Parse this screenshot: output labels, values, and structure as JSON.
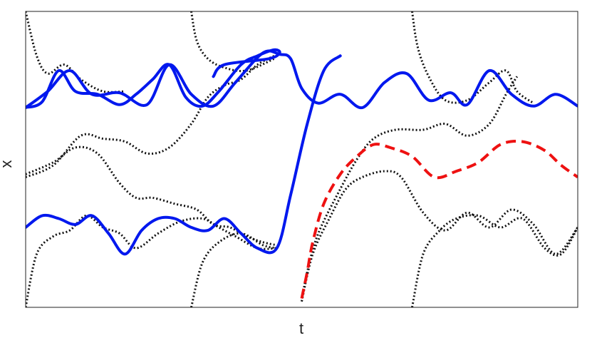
{
  "chart_data": {
    "type": "line",
    "title": "",
    "xlabel": "t",
    "ylabel": "x",
    "xlim": [
      0,
      1
    ],
    "ylim": [
      0,
      1
    ],
    "xticks": [],
    "yticks": [],
    "grid": false,
    "legend": "none",
    "series": [
      {
        "style": "solid",
        "color": "#0018ee",
        "points": [
          [
            0.0,
            0.675
          ],
          [
            0.03,
            0.695
          ],
          [
            0.06,
            0.8
          ],
          [
            0.09,
            0.73
          ],
          [
            0.13,
            0.72
          ],
          [
            0.17,
            0.685
          ],
          [
            0.2,
            0.72
          ],
          [
            0.23,
            0.77
          ],
          [
            0.26,
            0.82
          ],
          [
            0.29,
            0.71
          ],
          [
            0.32,
            0.68
          ],
          [
            0.35,
            0.73
          ],
          [
            0.39,
            0.82
          ],
          [
            0.42,
            0.85
          ],
          [
            0.45,
            0.87
          ],
          [
            0.46,
            0.86
          ],
          [
            0.44,
            0.84
          ],
          [
            0.36,
            0.82
          ],
          [
            0.34,
            0.78
          ]
        ]
      },
      {
        "style": "solid",
        "color": "#0018ee",
        "points": [
          [
            0.0,
            0.675
          ],
          [
            0.04,
            0.73
          ],
          [
            0.08,
            0.8
          ],
          [
            0.12,
            0.72
          ],
          [
            0.17,
            0.725
          ],
          [
            0.22,
            0.685
          ],
          [
            0.26,
            0.82
          ],
          [
            0.3,
            0.72
          ],
          [
            0.34,
            0.68
          ],
          [
            0.38,
            0.76
          ],
          [
            0.43,
            0.86
          ],
          [
            0.46,
            0.855
          ],
          [
            0.48,
            0.84
          ],
          [
            0.5,
            0.74
          ],
          [
            0.53,
            0.69
          ],
          [
            0.57,
            0.72
          ],
          [
            0.61,
            0.675
          ],
          [
            0.65,
            0.76
          ],
          [
            0.69,
            0.79
          ],
          [
            0.73,
            0.7
          ],
          [
            0.77,
            0.725
          ],
          [
            0.8,
            0.685
          ],
          [
            0.84,
            0.8
          ],
          [
            0.88,
            0.72
          ],
          [
            0.92,
            0.68
          ],
          [
            0.96,
            0.72
          ],
          [
            1.0,
            0.68
          ]
        ]
      },
      {
        "style": "solid",
        "color": "#0018ee",
        "points": [
          [
            0.0,
            0.27
          ],
          [
            0.03,
            0.31
          ],
          [
            0.06,
            0.3
          ],
          [
            0.09,
            0.28
          ],
          [
            0.12,
            0.31
          ],
          [
            0.15,
            0.25
          ],
          [
            0.18,
            0.18
          ],
          [
            0.21,
            0.26
          ],
          [
            0.24,
            0.3
          ],
          [
            0.27,
            0.3
          ],
          [
            0.3,
            0.27
          ],
          [
            0.33,
            0.26
          ],
          [
            0.36,
            0.3
          ],
          [
            0.39,
            0.25
          ],
          [
            0.42,
            0.2
          ],
          [
            0.455,
            0.2
          ],
          [
            0.48,
            0.38
          ],
          [
            0.51,
            0.62
          ],
          [
            0.54,
            0.8
          ],
          [
            0.57,
            0.85
          ]
        ]
      },
      {
        "style": "dashed",
        "color": "#ee1111",
        "points": [
          [
            0.5,
            0.03
          ],
          [
            0.51,
            0.12
          ],
          [
            0.52,
            0.22
          ],
          [
            0.54,
            0.35
          ],
          [
            0.57,
            0.45
          ],
          [
            0.6,
            0.51
          ],
          [
            0.63,
            0.55
          ],
          [
            0.66,
            0.54
          ],
          [
            0.7,
            0.51
          ],
          [
            0.74,
            0.44
          ],
          [
            0.78,
            0.46
          ],
          [
            0.82,
            0.49
          ],
          [
            0.86,
            0.55
          ],
          [
            0.9,
            0.56
          ],
          [
            0.94,
            0.53
          ],
          [
            0.97,
            0.48
          ],
          [
            1.0,
            0.44
          ]
        ]
      },
      {
        "style": "dotted",
        "color": "#111111",
        "points": [
          [
            0.0,
            1.0
          ],
          [
            0.02,
            0.85
          ],
          [
            0.04,
            0.79
          ],
          [
            0.07,
            0.82
          ],
          [
            0.1,
            0.77
          ],
          [
            0.14,
            0.73
          ],
          [
            0.18,
            0.73
          ]
        ]
      },
      {
        "style": "dotted",
        "color": "#111111",
        "points": [
          [
            0.0,
            0.44
          ],
          [
            0.05,
            0.48
          ],
          [
            0.1,
            0.58
          ],
          [
            0.14,
            0.57
          ],
          [
            0.18,
            0.56
          ],
          [
            0.22,
            0.52
          ],
          [
            0.26,
            0.54
          ],
          [
            0.3,
            0.62
          ],
          [
            0.33,
            0.71
          ],
          [
            0.36,
            0.75
          ],
          [
            0.39,
            0.77
          ],
          [
            0.42,
            0.82
          ],
          [
            0.45,
            0.85
          ]
        ]
      },
      {
        "style": "dotted",
        "color": "#111111",
        "points": [
          [
            0.0,
            0.45
          ],
          [
            0.05,
            0.49
          ],
          [
            0.09,
            0.54
          ],
          [
            0.13,
            0.52
          ],
          [
            0.17,
            0.42
          ],
          [
            0.2,
            0.37
          ],
          [
            0.23,
            0.37
          ],
          [
            0.27,
            0.35
          ],
          [
            0.31,
            0.33
          ],
          [
            0.34,
            0.28
          ],
          [
            0.37,
            0.27
          ],
          [
            0.4,
            0.24
          ],
          [
            0.43,
            0.22
          ],
          [
            0.455,
            0.21
          ]
        ]
      },
      {
        "style": "dotted",
        "color": "#111111",
        "points": [
          [
            0.0,
            0.0
          ],
          [
            0.02,
            0.18
          ],
          [
            0.05,
            0.24
          ],
          [
            0.08,
            0.26
          ],
          [
            0.11,
            0.31
          ],
          [
            0.14,
            0.27
          ],
          [
            0.17,
            0.25
          ],
          [
            0.2,
            0.2
          ],
          [
            0.24,
            0.25
          ],
          [
            0.28,
            0.29
          ],
          [
            0.32,
            0.3
          ],
          [
            0.35,
            0.27
          ],
          [
            0.38,
            0.24
          ],
          [
            0.42,
            0.2
          ],
          [
            0.455,
            0.2
          ]
        ]
      },
      {
        "style": "dotted",
        "color": "#111111",
        "points": [
          [
            0.3,
            1.0
          ],
          [
            0.31,
            0.9
          ],
          [
            0.33,
            0.84
          ],
          [
            0.36,
            0.81
          ],
          [
            0.4,
            0.8
          ],
          [
            0.45,
            0.84
          ]
        ]
      },
      {
        "style": "dotted",
        "color": "#111111",
        "points": [
          [
            0.3,
            0.0
          ],
          [
            0.32,
            0.15
          ],
          [
            0.35,
            0.22
          ],
          [
            0.39,
            0.25
          ],
          [
            0.43,
            0.21
          ],
          [
            0.455,
            0.2
          ]
        ]
      },
      {
        "style": "dotted",
        "color": "#111111",
        "points": [
          [
            0.5,
            0.02
          ],
          [
            0.51,
            0.12
          ],
          [
            0.53,
            0.25
          ],
          [
            0.57,
            0.4
          ],
          [
            0.6,
            0.5
          ],
          [
            0.63,
            0.57
          ],
          [
            0.67,
            0.6
          ],
          [
            0.72,
            0.6
          ],
          [
            0.76,
            0.62
          ],
          [
            0.8,
            0.58
          ],
          [
            0.84,
            0.62
          ],
          [
            0.87,
            0.72
          ],
          [
            0.89,
            0.78
          ]
        ]
      },
      {
        "style": "dotted",
        "color": "#111111",
        "points": [
          [
            0.5,
            0.02
          ],
          [
            0.52,
            0.18
          ],
          [
            0.55,
            0.3
          ],
          [
            0.58,
            0.4
          ],
          [
            0.61,
            0.44
          ],
          [
            0.65,
            0.46
          ],
          [
            0.68,
            0.44
          ],
          [
            0.72,
            0.32
          ],
          [
            0.76,
            0.26
          ],
          [
            0.8,
            0.32
          ],
          [
            0.84,
            0.27
          ],
          [
            0.88,
            0.33
          ],
          [
            0.92,
            0.28
          ],
          [
            0.96,
            0.18
          ],
          [
            1.0,
            0.27
          ]
        ]
      },
      {
        "style": "dotted",
        "color": "#111111",
        "points": [
          [
            0.7,
            1.0
          ],
          [
            0.71,
            0.88
          ],
          [
            0.73,
            0.78
          ],
          [
            0.76,
            0.7
          ],
          [
            0.8,
            0.7
          ],
          [
            0.84,
            0.76
          ],
          [
            0.87,
            0.8
          ],
          [
            0.89,
            0.73
          ],
          [
            0.92,
            0.69
          ]
        ]
      },
      {
        "style": "dotted",
        "color": "#111111",
        "points": [
          [
            0.7,
            0.0
          ],
          [
            0.72,
            0.18
          ],
          [
            0.75,
            0.26
          ],
          [
            0.78,
            0.3
          ],
          [
            0.82,
            0.31
          ],
          [
            0.86,
            0.27
          ],
          [
            0.9,
            0.3
          ],
          [
            0.94,
            0.2
          ],
          [
            0.97,
            0.18
          ],
          [
            1.0,
            0.27
          ]
        ]
      }
    ]
  }
}
